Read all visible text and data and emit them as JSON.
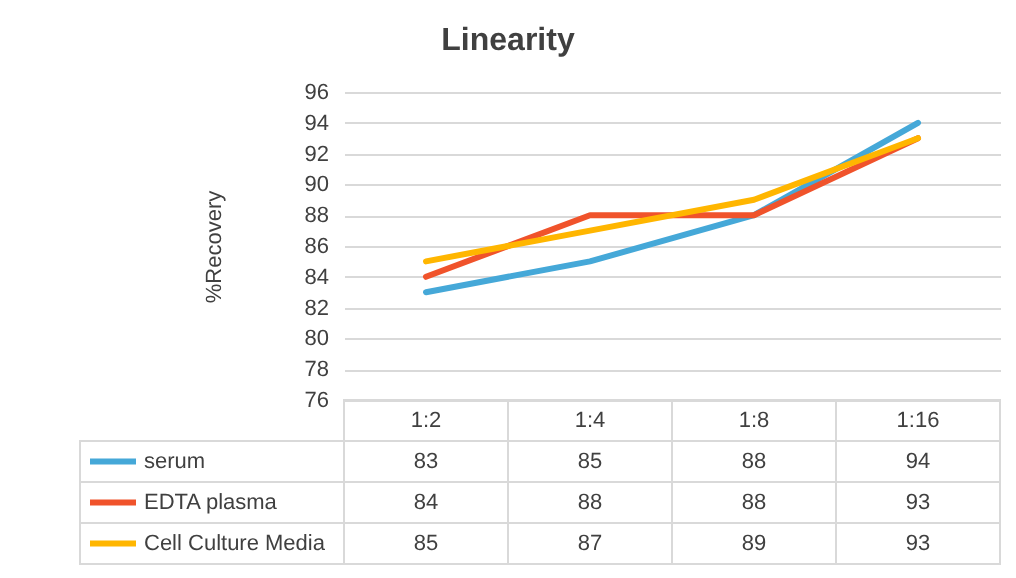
{
  "chart_data": {
    "type": "line",
    "title": "Linearity",
    "ylabel": "%Recovery",
    "categories": [
      "1:2",
      "1:4",
      "1:8",
      "1:16"
    ],
    "series": [
      {
        "name": "serum",
        "color": "#45a8d8",
        "values": [
          83,
          85,
          88,
          94
        ]
      },
      {
        "name": "EDTA plasma",
        "color": "#f0532b",
        "values": [
          84,
          88,
          88,
          93
        ]
      },
      {
        "name": "Cell Culture Media",
        "color": "#ffb600",
        "values": [
          85,
          87,
          89,
          93
        ]
      }
    ],
    "ylim": [
      76,
      96
    ],
    "yticks": [
      76,
      78,
      80,
      82,
      84,
      86,
      88,
      90,
      92,
      94,
      96
    ],
    "grid": "y",
    "legend": "bottom",
    "data_labels": true
  }
}
